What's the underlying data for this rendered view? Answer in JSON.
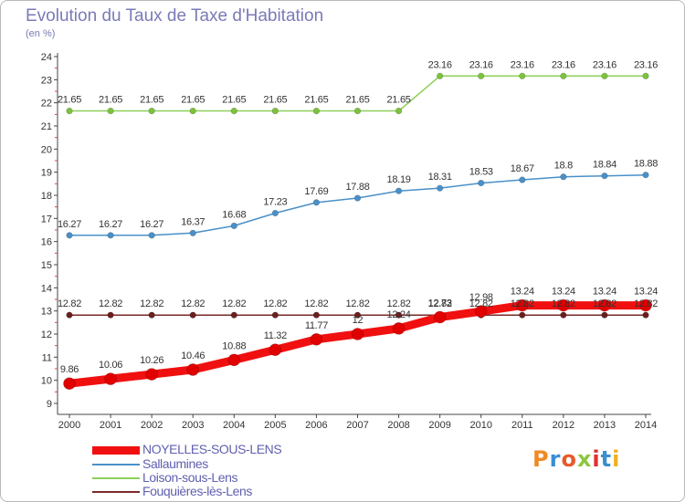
{
  "header": {
    "title": "Evolution du Taux de Taxe d'Habitation",
    "unit": "(en %)"
  },
  "logo": {
    "text": "Proxiti",
    "colors": [
      "#f08a24",
      "#3a8fd0",
      "#e85a2a",
      "#8cc63f",
      "#e03030",
      "#3a8fd0",
      "#f0b020"
    ]
  },
  "chart_data": {
    "type": "line",
    "title": "Evolution du Taux de Taxe d'Habitation",
    "ylabel": "(en %)",
    "xlabel": "",
    "x": [
      "2000",
      "2001",
      "2002",
      "2003",
      "2004",
      "2005",
      "2006",
      "2007",
      "2008",
      "2009",
      "2010",
      "2011",
      "2012",
      "2013",
      "2014"
    ],
    "yticks": [
      "9",
      "10",
      "11",
      "12",
      "13",
      "14",
      "15",
      "16",
      "17",
      "18",
      "19",
      "20",
      "21",
      "22",
      "23",
      "24"
    ],
    "ylim": [
      9,
      24
    ],
    "grid": false,
    "legend_position": "bottom-left",
    "series": [
      {
        "name": "Loison-sous-Lens",
        "color": "#8ed05a",
        "marker_color": "#7cc23c",
        "values": [
          21.65,
          21.65,
          21.65,
          21.65,
          21.65,
          21.65,
          21.65,
          21.65,
          21.65,
          23.16,
          23.16,
          23.16,
          23.16,
          23.16,
          23.16
        ],
        "labels": [
          "21.65",
          "21.65",
          "21.65",
          "21.65",
          "21.65",
          "21.65",
          "21.65",
          "21.65",
          "21.65",
          "23.16",
          "23.16",
          "23.16",
          "23.16",
          "23.16",
          "23.16"
        ]
      },
      {
        "name": "Sallaumines",
        "color": "#4a90c8",
        "marker_color": "#4a90c8",
        "values": [
          16.27,
          16.27,
          16.27,
          16.37,
          16.68,
          17.23,
          17.69,
          17.88,
          18.19,
          18.31,
          18.53,
          18.67,
          18.8,
          18.84,
          18.88
        ],
        "labels": [
          "16.27",
          "16.27",
          "16.27",
          "16.37",
          "16.68",
          "17.23",
          "17.69",
          "17.88",
          "18.19",
          "18.31",
          "18.53",
          "18.67",
          "18.8",
          "18.84",
          "18.88"
        ]
      },
      {
        "name": "Fouquières-lès-Lens",
        "color": "#7a2a2a",
        "marker_color": "#6a1f1f",
        "values": [
          12.82,
          12.82,
          12.82,
          12.82,
          12.82,
          12.82,
          12.82,
          12.82,
          12.82,
          12.82,
          12.82,
          12.82,
          12.82,
          12.82,
          12.82
        ],
        "labels": [
          "12.82",
          "12.82",
          "12.82",
          "12.82",
          "12.82",
          "12.82",
          "12.82",
          "12.82",
          "12.82",
          "12.82",
          "12.82",
          "12.82",
          "12.82",
          "12.82",
          "12.82"
        ]
      },
      {
        "name": "NOYELLES-SOUS-LENS",
        "color": "#f01010",
        "marker_color": "#e00000",
        "values": [
          9.86,
          10.06,
          10.26,
          10.46,
          10.88,
          11.32,
          11.77,
          12,
          12.24,
          12.73,
          12.98,
          13.24,
          13.24,
          13.24,
          13.24
        ],
        "labels": [
          "9.86",
          "10.06",
          "10.26",
          "10.46",
          "10.88",
          "11.32",
          "11.77",
          "12",
          "12.24",
          "12.73",
          "12.98",
          "13.24",
          "13.24",
          "13.24",
          "13.24"
        ]
      }
    ]
  },
  "legend": {
    "items": [
      {
        "name": "NOYELLES-SOUS-LENS",
        "color": "#f01010",
        "thickness": 9
      },
      {
        "name": "Sallaumines",
        "color": "#4a90c8",
        "thickness": 2
      },
      {
        "name": "Loison-sous-Lens",
        "color": "#8ed05a",
        "thickness": 2
      },
      {
        "name": "Fouquières-lès-Lens",
        "color": "#7a2a2a",
        "thickness": 2
      }
    ]
  }
}
